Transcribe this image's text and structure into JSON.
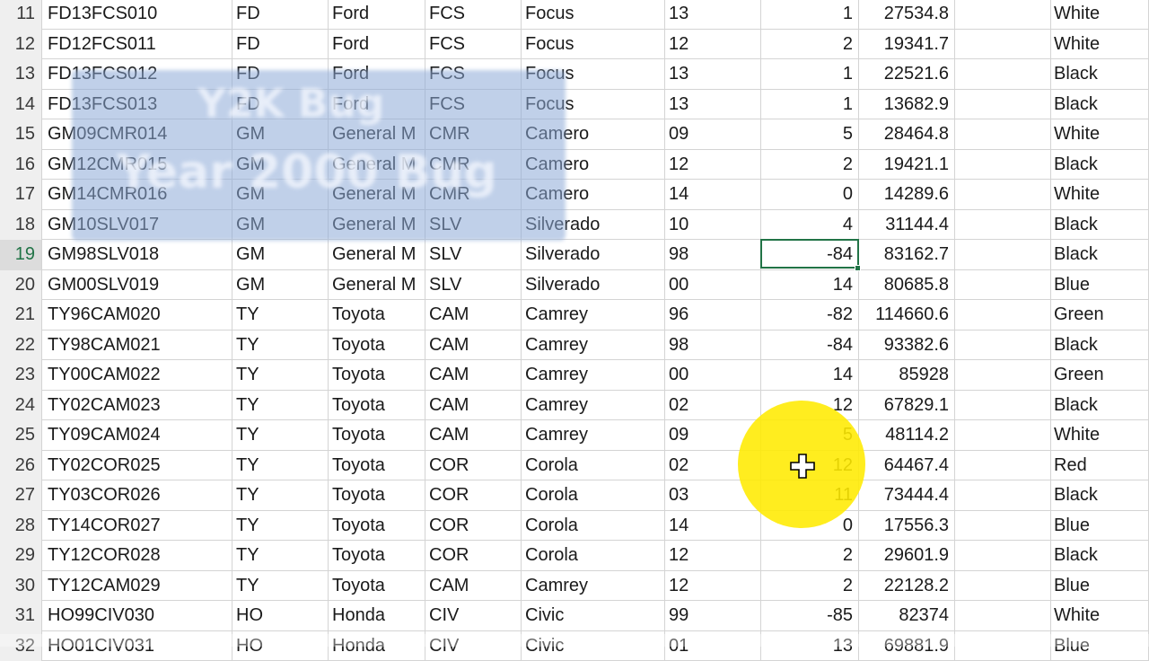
{
  "rows": [
    {
      "rn": "11",
      "a": "FD13FCS010",
      "b": "FD",
      "c": "Ford",
      "d": "FCS",
      "e": "Focus",
      "f": "13",
      "g": "1",
      "h": "27534.8",
      "j": "White"
    },
    {
      "rn": "12",
      "a": "FD12FCS011",
      "b": "FD",
      "c": "Ford",
      "d": "FCS",
      "e": "Focus",
      "f": "12",
      "g": "2",
      "h": "19341.7",
      "j": "White"
    },
    {
      "rn": "13",
      "a": "FD13FCS012",
      "b": "FD",
      "c": "Ford",
      "d": "FCS",
      "e": "Focus",
      "f": "13",
      "g": "1",
      "h": "22521.6",
      "j": "Black"
    },
    {
      "rn": "14",
      "a": "FD13FCS013",
      "b": "FD",
      "c": "Ford",
      "d": "FCS",
      "e": "Focus",
      "f": "13",
      "g": "1",
      "h": "13682.9",
      "j": "Black"
    },
    {
      "rn": "15",
      "a": "GM09CMR014",
      "b": "GM",
      "c": "General M",
      "d": "CMR",
      "e": "Camero",
      "f": "09",
      "g": "5",
      "h": "28464.8",
      "j": "White"
    },
    {
      "rn": "16",
      "a": "GM12CMR015",
      "b": "GM",
      "c": "General M",
      "d": "CMR",
      "e": "Camero",
      "f": "12",
      "g": "2",
      "h": "19421.1",
      "j": "Black"
    },
    {
      "rn": "17",
      "a": "GM14CMR016",
      "b": "GM",
      "c": "General M",
      "d": "CMR",
      "e": "Camero",
      "f": "14",
      "g": "0",
      "h": "14289.6",
      "j": "White"
    },
    {
      "rn": "18",
      "a": "GM10SLV017",
      "b": "GM",
      "c": "General M",
      "d": "SLV",
      "e": "Silverado",
      "f": "10",
      "g": "4",
      "h": "31144.4",
      "j": "Black"
    },
    {
      "rn": "19",
      "a": "GM98SLV018",
      "b": "GM",
      "c": "General M",
      "d": "SLV",
      "e": "Silverado",
      "f": "98",
      "g": "-84",
      "h": "83162.7",
      "j": "Black"
    },
    {
      "rn": "20",
      "a": "GM00SLV019",
      "b": "GM",
      "c": "General M",
      "d": "SLV",
      "e": "Silverado",
      "f": "00",
      "g": "14",
      "h": "80685.8",
      "j": "Blue"
    },
    {
      "rn": "21",
      "a": "TY96CAM020",
      "b": "TY",
      "c": "Toyota",
      "d": "CAM",
      "e": "Camrey",
      "f": "96",
      "g": "-82",
      "h": "114660.6",
      "j": "Green"
    },
    {
      "rn": "22",
      "a": "TY98CAM021",
      "b": "TY",
      "c": "Toyota",
      "d": "CAM",
      "e": "Camrey",
      "f": "98",
      "g": "-84",
      "h": "93382.6",
      "j": "Black"
    },
    {
      "rn": "23",
      "a": "TY00CAM022",
      "b": "TY",
      "c": "Toyota",
      "d": "CAM",
      "e": "Camrey",
      "f": "00",
      "g": "14",
      "h": "85928",
      "j": "Green"
    },
    {
      "rn": "24",
      "a": "TY02CAM023",
      "b": "TY",
      "c": "Toyota",
      "d": "CAM",
      "e": "Camrey",
      "f": "02",
      "g": "12",
      "h": "67829.1",
      "j": "Black"
    },
    {
      "rn": "25",
      "a": "TY09CAM024",
      "b": "TY",
      "c": "Toyota",
      "d": "CAM",
      "e": "Camrey",
      "f": "09",
      "g": "5",
      "h": "48114.2",
      "j": "White"
    },
    {
      "rn": "26",
      "a": "TY02COR025",
      "b": "TY",
      "c": "Toyota",
      "d": "COR",
      "e": "Corola",
      "f": "02",
      "g": "12",
      "h": "64467.4",
      "j": "Red"
    },
    {
      "rn": "27",
      "a": "TY03COR026",
      "b": "TY",
      "c": "Toyota",
      "d": "COR",
      "e": "Corola",
      "f": "03",
      "g": "11",
      "h": "73444.4",
      "j": "Black"
    },
    {
      "rn": "28",
      "a": "TY14COR027",
      "b": "TY",
      "c": "Toyota",
      "d": "COR",
      "e": "Corola",
      "f": "14",
      "g": "0",
      "h": "17556.3",
      "j": "Blue"
    },
    {
      "rn": "29",
      "a": "TY12COR028",
      "b": "TY",
      "c": "Toyota",
      "d": "COR",
      "e": "Corola",
      "f": "12",
      "g": "2",
      "h": "29601.9",
      "j": "Black"
    },
    {
      "rn": "30",
      "a": "TY12CAM029",
      "b": "TY",
      "c": "Toyota",
      "d": "CAM",
      "e": "Camrey",
      "f": "12",
      "g": "2",
      "h": "22128.2",
      "j": "Blue"
    },
    {
      "rn": "31",
      "a": "HO99CIV030",
      "b": "HO",
      "c": "Honda",
      "d": "CIV",
      "e": "Civic",
      "f": "99",
      "g": "-85",
      "h": "82374",
      "j": "White"
    },
    {
      "rn": "32",
      "a": "HO01CIV031",
      "b": "HO",
      "c": "Honda",
      "d": "CIV",
      "e": "Civic",
      "f": "01",
      "g": "13",
      "h": "69881.9",
      "j": "Blue"
    }
  ],
  "active_row_number": "19",
  "watermark": {
    "line1": "Y2K Bug",
    "line2": "Year 2000 Bug"
  },
  "colors": {
    "selection": "#217346",
    "highlight": "#ffeb00",
    "watermark": "#8caad7"
  },
  "icons": {
    "cursor": "excel-cell-select-cross"
  }
}
